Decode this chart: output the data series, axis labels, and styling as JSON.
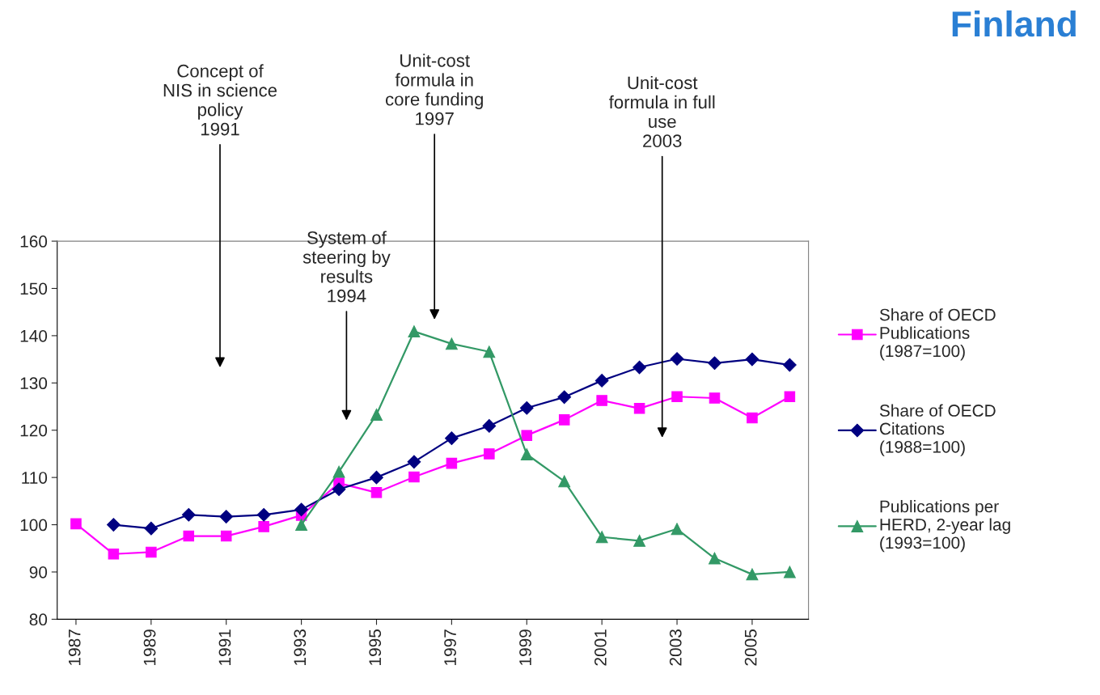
{
  "chart_data": {
    "type": "line",
    "title": "Finland",
    "x": [
      1987,
      1988,
      1989,
      1990,
      1991,
      1992,
      1993,
      1994,
      1995,
      1996,
      1997,
      1998,
      1999,
      2000,
      2001,
      2002,
      2003,
      2004,
      2005,
      2006
    ],
    "xlim": [
      1986.5,
      2006.5
    ],
    "xticks": [
      1987,
      1989,
      1991,
      1993,
      1995,
      1997,
      1999,
      2001,
      2003,
      2005
    ],
    "ylim": [
      80,
      160
    ],
    "yticks": [
      80,
      90,
      100,
      110,
      120,
      130,
      140,
      150,
      160
    ],
    "grid": false,
    "legend": "right",
    "series": [
      {
        "name": "Share of OECD\nPublications\n(1987=100)",
        "color": "#ff00ff",
        "marker": "square",
        "values": [
          100.2,
          93.8,
          94.2,
          97.6,
          97.6,
          99.6,
          102,
          108.8,
          106.8,
          110.1,
          113,
          115,
          118.9,
          122.2,
          126.3,
          124.6,
          127.1,
          126.8,
          122.6,
          127.1
        ]
      },
      {
        "name": "Share of OECD\nCitations\n(1988=100)",
        "color": "#000080",
        "marker": "diamond",
        "values": [
          null,
          100,
          99.2,
          102.1,
          101.7,
          102.1,
          103.2,
          107.5,
          110,
          113.3,
          118.3,
          120.9,
          124.7,
          127,
          130.5,
          133.3,
          135.1,
          134.2,
          135,
          133.8
        ]
      },
      {
        "name": "Publications per\nHERD, 2-year lag\n(1993=100)",
        "color": "#339966",
        "marker": "triangle",
        "values": [
          null,
          null,
          null,
          null,
          null,
          null,
          100,
          111.2,
          123.3,
          140.9,
          138.3,
          136.6,
          114.9,
          109.2,
          97.4,
          96.6,
          99.1,
          92.9,
          89.5,
          90
        ]
      }
    ],
    "annotations": [
      "Concept of\nNIS in science\npolicy\n1991",
      "System of\nsteering by\nresults\n1994",
      "Unit-cost\nformula in\ncore funding\n1997",
      "Unit-cost\nformula in full\nuse\n2003"
    ]
  }
}
